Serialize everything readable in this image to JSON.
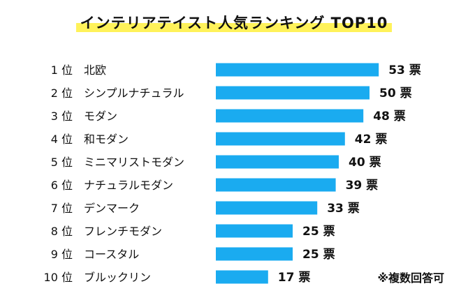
{
  "title": "インテリアテイスト人気ランキング TOP10",
  "note": "※複数回答可",
  "chart_data": {
    "type": "bar",
    "orientation": "horizontal",
    "title": "インテリアテイスト人気ランキング TOP10",
    "rank_suffix": "位",
    "value_suffix": "票",
    "bar_color": "#1aabf0",
    "categories": [
      "北欧",
      "シンプルナチュラル",
      "モダン",
      "和モダン",
      "ミニマリストモダン",
      "ナチュラルモダン",
      "デンマーク",
      "フレンチモダン",
      "コースタル",
      "ブルックリン"
    ],
    "ranks": [
      "1",
      "2",
      "3",
      "4",
      "5",
      "6",
      "7",
      "8",
      "9",
      "10"
    ],
    "values": [
      53,
      50,
      48,
      42,
      40,
      39,
      33,
      25,
      25,
      17
    ]
  }
}
